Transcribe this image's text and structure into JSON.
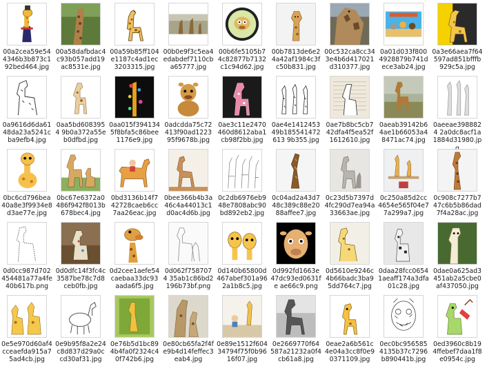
{
  "files": [
    {
      "name": "00a2cea59e544346b3b873c192bed464.jpg",
      "kind": "cartoon-suit"
    },
    {
      "name": "00a58dafbdac4c93b057add19ac8531e.jpg",
      "kind": "photo-tree"
    },
    {
      "name": "00a59b85ff104e1187c4ad1ec3203315.jpg",
      "kind": "cartoon-standing"
    },
    {
      "name": "00b0e9f3c5ea4edabdef7110cba65777.jpg",
      "kind": "photo-wide"
    },
    {
      "name": "00b6fe5105b74c82877b7132c1c94d62.jpg",
      "kind": "circle-logo"
    },
    {
      "name": "00b7813de6e24a42af1984c3fc50b831.jpg",
      "kind": "head-white"
    },
    {
      "name": "00c532ca8cc343e4b6d417021d310377.jpg",
      "kind": "photo-closeup"
    },
    {
      "name": "0a01d033f8004928879b741dece3ab24.jpg",
      "kind": "movie-poster"
    },
    {
      "name": "0a3e66aea7f64597ad851bfffb929c5a.jpg",
      "kind": "cartoon-dark"
    },
    {
      "name": "0a9616d6da6148da23a5241cba9efb4.jpg",
      "kind": "lineart"
    },
    {
      "name": "0aa5bd6083954 9b0a372a55eb0dfbd.jpg",
      "kind": "toy"
    },
    {
      "name": "0aa015f3941345f8bfa5c86bee1176e9.jpg",
      "kind": "dark-floral"
    },
    {
      "name": "0adcdda75c72413f90ad122395f9678b.jpg",
      "kind": "plush"
    },
    {
      "name": "0ae3c11e2470460d8612aba1cb98f2bb.jpg",
      "kind": "pink-toy"
    },
    {
      "name": "0ae4e141245349b185541472613 9b355.jpg",
      "kind": "three-giraffes"
    },
    {
      "name": "0ae7b8bc5cb742dfa4f5ea52f1612610.jpg",
      "kind": "book-page"
    },
    {
      "name": "0aeab39142b64ae1b66053a48471ac74.jpg",
      "kind": "photo-savanna"
    },
    {
      "name": "0aeeae3988824 2a0dc8acf1a1884d31980.jpg",
      "kind": "sketch-gray"
    },
    {
      "name": "0bc6cd796bea40a8e3f9934e8d3ae77e.jpg",
      "kind": "cartoon-sitting"
    },
    {
      "name": "0bc67e6372a0486f942f8013b678bec4.jpg",
      "kind": "mother-baby"
    },
    {
      "name": "0bd3136b14f742728caeb6cc7aa26eac.jpg",
      "kind": "boy-riding"
    },
    {
      "name": "0bee366b4b3a46c4a44013c1d0ac4d6b.jpg",
      "kind": "cardboard"
    },
    {
      "name": "0c2db6976eb948e7808abc90bd892eb2.jpg",
      "kind": "line-pattern"
    },
    {
      "name": "0c04ad2a43d748c389c88e2088affee7.jpg",
      "kind": "wood-carving"
    },
    {
      "name": "0c23d5b7397d4fc290d7ea94a33663ae.jpg",
      "kind": "figurine"
    },
    {
      "name": "0c250a85d2cc4654e565f04e77a299a7.jpg",
      "kind": "room-shelf"
    },
    {
      "name": "0c908c7277b747c6b5b86dad7f4a28ac.jpg",
      "kind": "carved-tall"
    },
    {
      "name": "0d0cc987d702454481a77a4fe40b617b.png",
      "kind": "dotted-outline"
    },
    {
      "name": "0d0dfc14f3fc4c3587be78c7d8ceb0fb.jpg",
      "kind": "ceramic"
    },
    {
      "name": "0d2cee1aefe54caebaa33dc93aada6f5.jpg",
      "kind": "puppet"
    },
    {
      "name": "0d062f7587074 35ab1c86bd2196b73bf.png",
      "kind": "pencil-sketch"
    },
    {
      "name": "0d140b65800d467abef301a962a1b8c5.jpg",
      "kind": "two-heads"
    },
    {
      "name": "0d992fd1663e47dc93ed0631fe ae66c9.png",
      "kind": "face-black"
    },
    {
      "name": "0d5610e9246c4b66badc3ba95dd764c7.jpg",
      "kind": "drawing-paper"
    },
    {
      "name": "0daa28fcc06541aeaff174a3dfa01c28.jpg",
      "kind": "spotted-blocks"
    },
    {
      "name": "0dae0a625ad3451ab2a5cbe0af437050.jpg",
      "kind": "cartoon-white"
    },
    {
      "name": "0e5e970d60af4cceaefda915a75ad4cb.jpg",
      "kind": "two-cartoons"
    },
    {
      "name": "0e9b95f8a2e24c8d837d29a0ccd30af31.jpg",
      "kind": "doodle"
    },
    {
      "name": "0e76b5d1bc894b4fa0f2324c40f742b6.jpg",
      "kind": "green-card"
    },
    {
      "name": "0e80cb65fa2f4fe9b4d14feffec3eab4.jpg",
      "kind": "mother-photo"
    },
    {
      "name": "0e89e1512f60434794f75f0b9616f07.jpg",
      "kind": "child-room"
    },
    {
      "name": "0e2669770f64587a21232a0f4cb61a8.jpg",
      "kind": "bw-statue"
    },
    {
      "name": "0eae2a6b561c4e04a3cc8f0e90371109.jpg",
      "kind": "cartoon-small"
    },
    {
      "name": "0ec0bc9565854135b37c7296b890441b.jpg",
      "kind": "zentangle"
    },
    {
      "name": "0ed3960c8b194ffebef7daa1f8e0954c.jpg",
      "kind": "cartoon-sign"
    }
  ]
}
